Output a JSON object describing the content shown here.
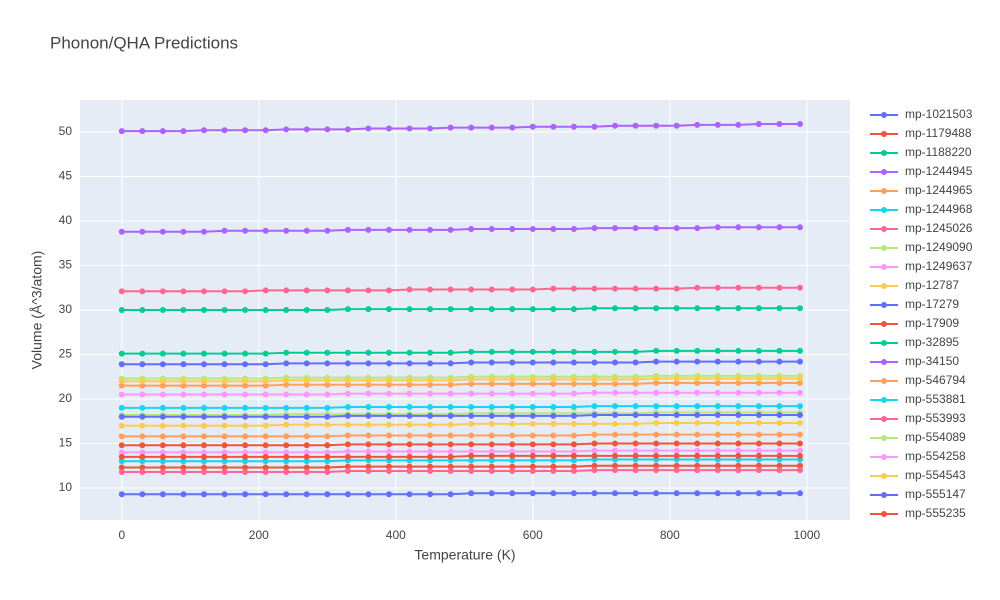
{
  "chart_data": {
    "type": "line",
    "title": "Phonon/QHA Predictions",
    "x_label": "Temperature (K)",
    "y_label": "Volume (Å^3/atom)",
    "xlim": [
      -61,
      1063
    ],
    "xticks": [
      0,
      200,
      400,
      600,
      800,
      1000
    ],
    "ylim": [
      6.4,
      53.6
    ],
    "yticks": [
      10,
      15,
      20,
      25,
      30,
      35,
      40,
      45,
      50
    ],
    "grid": true,
    "legend": "right",
    "x": [
      0,
      30,
      60,
      90,
      120,
      150,
      180,
      210,
      240,
      270,
      300,
      330,
      360,
      390,
      420,
      450,
      480,
      510,
      540,
      570,
      600,
      630,
      660,
      690,
      720,
      750,
      780,
      810,
      840,
      870,
      900,
      930,
      960,
      990
    ],
    "series": [
      {
        "name": "mp-1021503",
        "color": "#636efa",
        "values": [
          9.3,
          9.3,
          9.3,
          9.3,
          9.3,
          9.3,
          9.3,
          9.3,
          9.3,
          9.3,
          9.3,
          9.3,
          9.3,
          9.3,
          9.3,
          9.3,
          9.3,
          9.4,
          9.4,
          9.4,
          9.4,
          9.4,
          9.4,
          9.4,
          9.4,
          9.4,
          9.4,
          9.4,
          9.4,
          9.4,
          9.4,
          9.4,
          9.4,
          9.4
        ]
      },
      {
        "name": "mp-1179488",
        "color": "#EF553B",
        "values": [
          12.3,
          12.3,
          12.3,
          12.3,
          12.3,
          12.3,
          12.3,
          12.3,
          12.3,
          12.3,
          12.3,
          12.4,
          12.4,
          12.4,
          12.4,
          12.4,
          12.4,
          12.4,
          12.4,
          12.4,
          12.4,
          12.4,
          12.4,
          12.5,
          12.5,
          12.5,
          12.5,
          12.5,
          12.5,
          12.5,
          12.5,
          12.5,
          12.5,
          12.5
        ]
      },
      {
        "name": "mp-1188220",
        "color": "#00cc96",
        "values": [
          30.0,
          30.0,
          30.0,
          30.0,
          30.0,
          30.0,
          30.0,
          30.0,
          30.0,
          30.0,
          30.0,
          30.1,
          30.1,
          30.1,
          30.1,
          30.1,
          30.1,
          30.1,
          30.1,
          30.1,
          30.1,
          30.1,
          30.1,
          30.2,
          30.2,
          30.2,
          30.2,
          30.2,
          30.2,
          30.2,
          30.2,
          30.2,
          30.2,
          30.2
        ]
      },
      {
        "name": "mp-1244945",
        "color": "#ab63fa",
        "values": [
          50.1,
          50.1,
          50.1,
          50.1,
          50.2,
          50.2,
          50.2,
          50.2,
          50.3,
          50.3,
          50.3,
          50.3,
          50.4,
          50.4,
          50.4,
          50.4,
          50.5,
          50.5,
          50.5,
          50.5,
          50.6,
          50.6,
          50.6,
          50.6,
          50.7,
          50.7,
          50.7,
          50.7,
          50.8,
          50.8,
          50.8,
          50.9,
          50.9,
          50.9
        ]
      },
      {
        "name": "mp-1244965",
        "color": "#FFA15A",
        "values": [
          21.5,
          21.5,
          21.5,
          21.5,
          21.5,
          21.5,
          21.5,
          21.5,
          21.6,
          21.6,
          21.6,
          21.6,
          21.6,
          21.6,
          21.6,
          21.6,
          21.6,
          21.7,
          21.7,
          21.7,
          21.7,
          21.7,
          21.7,
          21.7,
          21.7,
          21.7,
          21.8,
          21.8,
          21.8,
          21.8,
          21.8,
          21.8,
          21.8,
          21.8
        ]
      },
      {
        "name": "mp-1244968",
        "color": "#19d3f3",
        "values": [
          19.0,
          19.0,
          19.0,
          19.0,
          19.0,
          19.0,
          19.0,
          19.0,
          19.0,
          19.0,
          19.0,
          19.1,
          19.1,
          19.1,
          19.1,
          19.1,
          19.1,
          19.1,
          19.1,
          19.1,
          19.1,
          19.1,
          19.1,
          19.2,
          19.2,
          19.2,
          19.2,
          19.2,
          19.2,
          19.2,
          19.2,
          19.2,
          19.2,
          19.2
        ]
      },
      {
        "name": "mp-1245026",
        "color": "#FF6692",
        "values": [
          32.1,
          32.1,
          32.1,
          32.1,
          32.1,
          32.1,
          32.1,
          32.2,
          32.2,
          32.2,
          32.2,
          32.2,
          32.2,
          32.2,
          32.3,
          32.3,
          32.3,
          32.3,
          32.3,
          32.3,
          32.3,
          32.4,
          32.4,
          32.4,
          32.4,
          32.4,
          32.4,
          32.4,
          32.5,
          32.5,
          32.5,
          32.5,
          32.5,
          32.5
        ]
      },
      {
        "name": "mp-1249090",
        "color": "#B6E880",
        "values": [
          22.3,
          22.3,
          22.3,
          22.3,
          22.3,
          22.3,
          22.3,
          22.3,
          22.4,
          22.4,
          22.4,
          22.4,
          22.4,
          22.4,
          22.4,
          22.4,
          22.4,
          22.5,
          22.5,
          22.5,
          22.5,
          22.5,
          22.5,
          22.5,
          22.5,
          22.5,
          22.6,
          22.6,
          22.6,
          22.6,
          22.6,
          22.6,
          22.6,
          22.6
        ]
      },
      {
        "name": "mp-1249637",
        "color": "#FF97FF",
        "values": [
          20.5,
          20.5,
          20.5,
          20.5,
          20.5,
          20.5,
          20.5,
          20.5,
          20.5,
          20.5,
          20.5,
          20.6,
          20.6,
          20.6,
          20.6,
          20.6,
          20.6,
          20.6,
          20.6,
          20.6,
          20.6,
          20.6,
          20.6,
          20.7,
          20.7,
          20.7,
          20.7,
          20.7,
          20.7,
          20.7,
          20.7,
          20.7,
          20.7,
          20.7
        ]
      },
      {
        "name": "mp-12787",
        "color": "#FECB52",
        "values": [
          17.0,
          17.0,
          17.0,
          17.0,
          17.0,
          17.0,
          17.0,
          17.0,
          17.1,
          17.1,
          17.1,
          17.1,
          17.1,
          17.1,
          17.1,
          17.1,
          17.1,
          17.2,
          17.2,
          17.2,
          17.2,
          17.2,
          17.2,
          17.2,
          17.2,
          17.2,
          17.3,
          17.3,
          17.3,
          17.3,
          17.3,
          17.3,
          17.3,
          17.3
        ]
      },
      {
        "name": "mp-17279",
        "color": "#636efa",
        "values": [
          23.9,
          23.9,
          23.9,
          23.9,
          23.9,
          23.9,
          23.9,
          23.9,
          24.0,
          24.0,
          24.0,
          24.0,
          24.0,
          24.0,
          24.0,
          24.0,
          24.0,
          24.1,
          24.1,
          24.1,
          24.1,
          24.1,
          24.1,
          24.1,
          24.1,
          24.1,
          24.2,
          24.2,
          24.2,
          24.2,
          24.2,
          24.2,
          24.2,
          24.2
        ]
      },
      {
        "name": "mp-17909",
        "color": "#EF553B",
        "values": [
          14.8,
          14.8,
          14.8,
          14.8,
          14.8,
          14.8,
          14.8,
          14.8,
          14.8,
          14.8,
          14.8,
          14.9,
          14.9,
          14.9,
          14.9,
          14.9,
          14.9,
          14.9,
          14.9,
          14.9,
          14.9,
          14.9,
          14.9,
          15.0,
          15.0,
          15.0,
          15.0,
          15.0,
          15.0,
          15.0,
          15.0,
          15.0,
          15.0,
          15.0
        ]
      },
      {
        "name": "mp-32895",
        "color": "#00cc96",
        "values": [
          25.1,
          25.1,
          25.1,
          25.1,
          25.1,
          25.1,
          25.1,
          25.1,
          25.2,
          25.2,
          25.2,
          25.2,
          25.2,
          25.2,
          25.2,
          25.2,
          25.2,
          25.3,
          25.3,
          25.3,
          25.3,
          25.3,
          25.3,
          25.3,
          25.3,
          25.3,
          25.4,
          25.4,
          25.4,
          25.4,
          25.4,
          25.4,
          25.4,
          25.4
        ]
      },
      {
        "name": "mp-34150",
        "color": "#ab63fa",
        "values": [
          38.8,
          38.8,
          38.8,
          38.8,
          38.8,
          38.9,
          38.9,
          38.9,
          38.9,
          38.9,
          38.9,
          39.0,
          39.0,
          39.0,
          39.0,
          39.0,
          39.0,
          39.1,
          39.1,
          39.1,
          39.1,
          39.1,
          39.1,
          39.2,
          39.2,
          39.2,
          39.2,
          39.2,
          39.2,
          39.3,
          39.3,
          39.3,
          39.3,
          39.3
        ]
      },
      {
        "name": "mp-546794",
        "color": "#FFA15A",
        "values": [
          15.8,
          15.8,
          15.8,
          15.8,
          15.8,
          15.8,
          15.8,
          15.8,
          15.8,
          15.8,
          15.8,
          15.9,
          15.9,
          15.9,
          15.9,
          15.9,
          15.9,
          15.9,
          15.9,
          15.9,
          15.9,
          15.9,
          15.9,
          16.0,
          16.0,
          16.0,
          16.0,
          16.0,
          16.0,
          16.0,
          16.0,
          16.0,
          16.0,
          16.0
        ]
      },
      {
        "name": "mp-553881",
        "color": "#19d3f3",
        "values": [
          13.0,
          13.0,
          13.0,
          13.0,
          13.0,
          13.0,
          13.0,
          13.0,
          13.0,
          13.0,
          13.0,
          13.1,
          13.1,
          13.1,
          13.1,
          13.1,
          13.1,
          13.1,
          13.1,
          13.1,
          13.1,
          13.1,
          13.1,
          13.2,
          13.2,
          13.2,
          13.2,
          13.2,
          13.2,
          13.2,
          13.2,
          13.2,
          13.2,
          13.2
        ]
      },
      {
        "name": "mp-553993",
        "color": "#FF6692",
        "values": [
          11.8,
          11.8,
          11.8,
          11.8,
          11.8,
          11.8,
          11.8,
          11.8,
          11.8,
          11.8,
          11.8,
          11.9,
          11.9,
          11.9,
          11.9,
          11.9,
          11.9,
          11.9,
          11.9,
          11.9,
          11.9,
          11.9,
          11.9,
          12.0,
          12.0,
          12.0,
          12.0,
          12.0,
          12.0,
          12.0,
          12.0,
          12.0,
          12.0,
          12.0
        ]
      },
      {
        "name": "mp-554089",
        "color": "#B6E880",
        "values": [
          18.2,
          18.2,
          18.2,
          18.2,
          18.2,
          18.2,
          18.2,
          18.2,
          18.3,
          18.3,
          18.3,
          18.3,
          18.3,
          18.3,
          18.3,
          18.3,
          18.3,
          18.4,
          18.4,
          18.4,
          18.4,
          18.4,
          18.4,
          18.4,
          18.4,
          18.4,
          18.5,
          18.5,
          18.5,
          18.5,
          18.5,
          18.5,
          18.5,
          18.5
        ]
      },
      {
        "name": "mp-554258",
        "color": "#FF97FF",
        "values": [
          14.0,
          14.0,
          14.0,
          14.0,
          14.0,
          14.0,
          14.0,
          14.0,
          14.0,
          14.0,
          14.0,
          14.1,
          14.1,
          14.1,
          14.1,
          14.1,
          14.1,
          14.1,
          14.1,
          14.1,
          14.1,
          14.1,
          14.1,
          14.2,
          14.2,
          14.2,
          14.2,
          14.2,
          14.2,
          14.2,
          14.2,
          14.2,
          14.2,
          14.2
        ]
      },
      {
        "name": "mp-554543",
        "color": "#FECB52",
        "values": [
          22.0,
          22.0,
          22.0,
          22.0,
          22.0,
          22.0,
          22.0,
          22.0,
          22.1,
          22.1,
          22.1,
          22.1,
          22.1,
          22.1,
          22.1,
          22.1,
          22.1,
          22.2,
          22.2,
          22.2,
          22.2,
          22.2,
          22.2,
          22.2,
          22.2,
          22.2,
          22.3,
          22.3,
          22.3,
          22.3,
          22.3,
          22.3,
          22.3,
          22.3
        ]
      },
      {
        "name": "mp-555147",
        "color": "#636efa",
        "values": [
          18.0,
          18.0,
          18.0,
          18.0,
          18.0,
          18.0,
          18.0,
          18.0,
          18.0,
          18.0,
          18.0,
          18.1,
          18.1,
          18.1,
          18.1,
          18.1,
          18.1,
          18.1,
          18.1,
          18.1,
          18.1,
          18.1,
          18.1,
          18.2,
          18.2,
          18.2,
          18.2,
          18.2,
          18.2,
          18.2,
          18.2,
          18.2,
          18.2,
          18.2
        ]
      },
      {
        "name": "mp-555235",
        "color": "#EF553B",
        "values": [
          13.5,
          13.5,
          13.5,
          13.5,
          13.5,
          13.5,
          13.5,
          13.5,
          13.5,
          13.5,
          13.5,
          13.5,
          13.5,
          13.5,
          13.5,
          13.5,
          13.5,
          13.6,
          13.6,
          13.6,
          13.6,
          13.6,
          13.6,
          13.6,
          13.6,
          13.6,
          13.6,
          13.6,
          13.6,
          13.6,
          13.6,
          13.6,
          13.6,
          13.6
        ]
      }
    ]
  }
}
